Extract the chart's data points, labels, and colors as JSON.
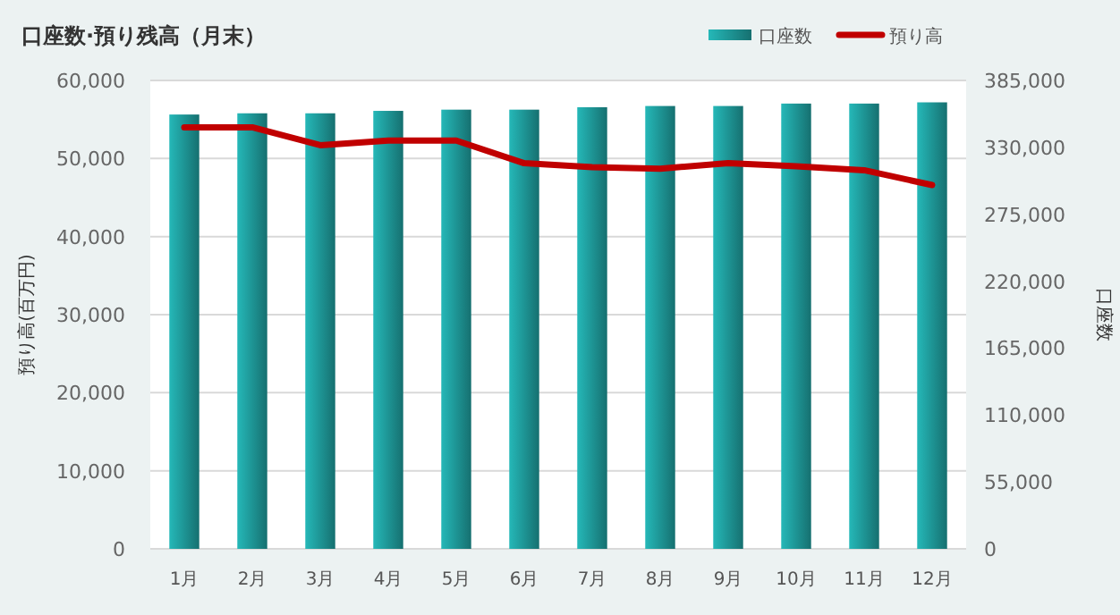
{
  "chart_data": {
    "type": "bar",
    "title": "口座数·預り残高（月末）",
    "ylabel": "預り高(百万円)",
    "y2label": "口座数",
    "categories": [
      "1月",
      "2月",
      "3月",
      "4月",
      "5月",
      "6月",
      "7月",
      "8月",
      "9月",
      "10月",
      "11月",
      "12月"
    ],
    "series": [
      {
        "name": "口座数",
        "axis": "y2",
        "color": "#1f9a9a",
        "values": [
          357000,
          358000,
          358000,
          360000,
          361000,
          361000,
          363000,
          364000,
          364000,
          366000,
          366000,
          367000
        ]
      },
      {
        "name": "預り高",
        "type": "line",
        "axis": "y",
        "color": "#c00000",
        "values": [
          54000,
          54000,
          51700,
          52300,
          52300,
          49400,
          48900,
          48700,
          49400,
          49000,
          48500,
          46600
        ]
      }
    ],
    "ylim": [
      0,
      60000
    ],
    "yticks": [
      {
        "value": 0,
        "label": "0"
      },
      {
        "value": 10000,
        "label": "10,000"
      },
      {
        "value": 20000,
        "label": "20,000"
      },
      {
        "value": 30000,
        "label": "30,000"
      },
      {
        "value": 40000,
        "label": "40,000"
      },
      {
        "value": 50000,
        "label": "50,000"
      },
      {
        "value": 60000,
        "label": "60,000"
      }
    ],
    "y2lim": [
      0,
      385000
    ],
    "y2ticks": [
      {
        "value": 0,
        "label": "0"
      },
      {
        "value": 55000,
        "label": "55,000"
      },
      {
        "value": 110000,
        "label": "110,000"
      },
      {
        "value": 165000,
        "label": "165,000"
      },
      {
        "value": 220000,
        "label": "220,000"
      },
      {
        "value": 275000,
        "label": "275,000"
      },
      {
        "value": 330000,
        "label": "330,000"
      },
      {
        "value": 385000,
        "label": "385,000"
      }
    ],
    "grid": "y",
    "legend": "top right",
    "marker": "none",
    "line_style": "solid"
  }
}
